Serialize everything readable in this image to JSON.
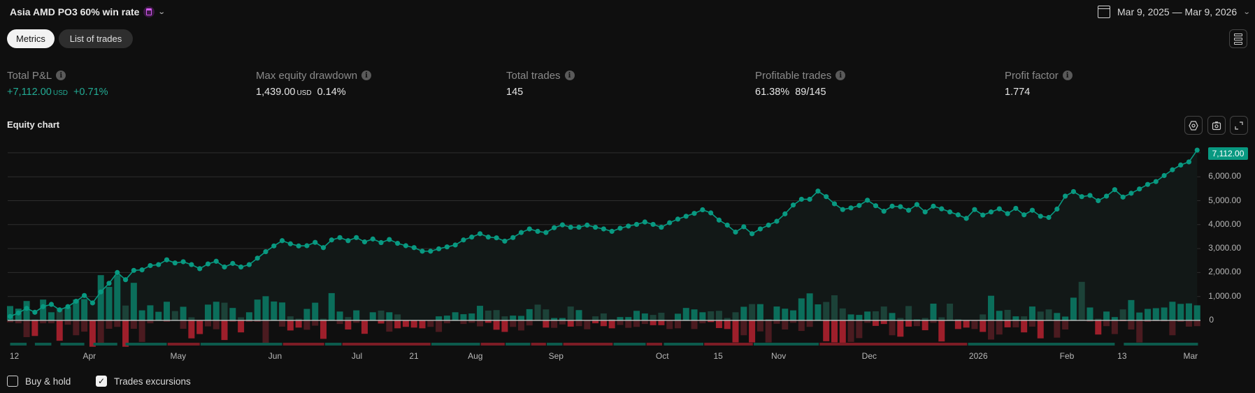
{
  "header": {
    "strategy_title": "Asia AMD PO3 60% win rate",
    "title_icon": "calendar-icon",
    "date_range": "Mar 9, 2025 — Mar 9, 2026"
  },
  "tabs": [
    {
      "label": "Metrics",
      "active": true
    },
    {
      "label": "List of trades",
      "active": false
    }
  ],
  "metrics": [
    {
      "label": "Total P&L",
      "value": "+7,112.00",
      "unit": "USD",
      "extra": "+0.71%",
      "color": "#22ab94"
    },
    {
      "label": "Max equity drawdown",
      "value": "1,439.00",
      "unit": "USD",
      "extra": "0.14%"
    },
    {
      "label": "Total trades",
      "value": "145"
    },
    {
      "label": "Profitable trades",
      "value": "61.38%",
      "extra": "89/145"
    },
    {
      "label": "Profit factor",
      "value": "1.774"
    }
  ],
  "equity_chart": {
    "title": "Equity chart",
    "toolbar_icons": [
      "settings-icon",
      "camera-icon",
      "fullscreen-icon"
    ],
    "last_value_label": "7,112.00"
  },
  "chart_data": {
    "type": "line",
    "x_unit": "trade number",
    "ylim": [
      -1000,
      7300
    ],
    "grid": true,
    "y_ticks": [
      {
        "value": 0,
        "label": "0"
      },
      {
        "value": 1000,
        "label": "1,000.00"
      },
      {
        "value": 2000,
        "label": "2,000.00"
      },
      {
        "value": 3000,
        "label": "3,000.00"
      },
      {
        "value": 4000,
        "label": "4,000.00"
      },
      {
        "value": 5000,
        "label": "5,000.00"
      },
      {
        "value": 6000,
        "label": "6,000.00"
      },
      {
        "value": 7000,
        "label": ""
      }
    ],
    "x_ticks": [
      {
        "trade": 0.2,
        "label": "12"
      },
      {
        "trade": 9.5,
        "label": "Apr"
      },
      {
        "trade": 20.1,
        "label": "May"
      },
      {
        "trade": 32,
        "label": "Jun"
      },
      {
        "trade": 42.1,
        "label": "Jul"
      },
      {
        "trade": 49.1,
        "label": "21"
      },
      {
        "trade": 56.2,
        "label": "Aug"
      },
      {
        "trade": 66,
        "label": "Sep"
      },
      {
        "trade": 79,
        "label": "Oct"
      },
      {
        "trade": 86,
        "label": "15"
      },
      {
        "trade": 93,
        "label": "Nov"
      },
      {
        "trade": 104,
        "label": "Dec"
      },
      {
        "trade": 117,
        "label": "2026"
      },
      {
        "trade": 128,
        "label": "Feb"
      },
      {
        "trade": 135,
        "label": "13"
      },
      {
        "trade": 143,
        "label": "Mar"
      }
    ],
    "colors": {
      "equity": "#089981",
      "runup": "#0b6e5b",
      "runup_faint": "#1c4238",
      "drawdown": "#9e1f2b",
      "drawdown_faint": "#4b1b20",
      "band_profit": "#0c5a4c",
      "band_loss": "#7c1c25"
    },
    "equity": [
      165,
      310,
      505,
      340,
      575,
      670,
      440,
      575,
      800,
      1040,
      730,
      1190,
      1550,
      2000,
      1700,
      2090,
      2110,
      2290,
      2330,
      2530,
      2400,
      2450,
      2330,
      2160,
      2360,
      2470,
      2230,
      2380,
      2230,
      2330,
      2600,
      2870,
      3110,
      3330,
      3200,
      3110,
      3120,
      3260,
      3040,
      3360,
      3460,
      3330,
      3460,
      3280,
      3400,
      3250,
      3380,
      3220,
      3120,
      3040,
      2890,
      2890,
      2990,
      3070,
      3150,
      3360,
      3480,
      3620,
      3480,
      3450,
      3310,
      3460,
      3670,
      3820,
      3720,
      3670,
      3870,
      3990,
      3890,
      3890,
      3980,
      3890,
      3820,
      3720,
      3850,
      3940,
      4010,
      4110,
      4010,
      3890,
      4080,
      4230,
      4350,
      4470,
      4620,
      4490,
      4190,
      3980,
      3690,
      3910,
      3620,
      3820,
      3980,
      4140,
      4450,
      4820,
      5060,
      5060,
      5400,
      5170,
      4870,
      4630,
      4700,
      4800,
      5020,
      4790,
      4560,
      4770,
      4750,
      4600,
      4840,
      4530,
      4770,
      4660,
      4530,
      4410,
      4260,
      4630,
      4400,
      4530,
      4660,
      4460,
      4680,
      4410,
      4600,
      4350,
      4300,
      4650,
      5190,
      5380,
      5170,
      5220,
      5000,
      5190,
      5460,
      5150,
      5310,
      5490,
      5680,
      5800,
      6050,
      6290,
      6490,
      6620,
      7112
    ],
    "runup": [
      600,
      490,
      810,
      40,
      870,
      340,
      500,
      550,
      870,
      890,
      0,
      1890,
      1400,
      1890,
      620,
      1570,
      420,
      630,
      360,
      780,
      390,
      570,
      130,
      0,
      660,
      780,
      740,
      520,
      130,
      340,
      870,
      1010,
      790,
      750,
      170,
      70,
      480,
      740,
      70,
      1140,
      370,
      140,
      420,
      0,
      340,
      410,
      340,
      250,
      0,
      0,
      0,
      0,
      170,
      200,
      340,
      260,
      290,
      610,
      410,
      430,
      170,
      200,
      190,
      470,
      660,
      460,
      100,
      100,
      580,
      430,
      0,
      170,
      290,
      50,
      140,
      140,
      400,
      290,
      230,
      320,
      0,
      280,
      520,
      460,
      340,
      380,
      400,
      100,
      340,
      570,
      680,
      680,
      40,
      580,
      490,
      420,
      920,
      1130,
      670,
      770,
      1050,
      500,
      250,
      230,
      370,
      380,
      580,
      310,
      100,
      600,
      40,
      100,
      700,
      130,
      700,
      50,
      0,
      0,
      250,
      1030,
      400,
      440,
      170,
      170,
      580,
      370,
      460,
      310,
      160,
      950,
      1610,
      540,
      70,
      370,
      140,
      460,
      850,
      330,
      480,
      510,
      540,
      780,
      690,
      710,
      630,
      1000,
      1660
    ],
    "drawdown": [
      80,
      120,
      700,
      650,
      120,
      120,
      850,
      180,
      620,
      470,
      1100,
      950,
      350,
      270,
      1100,
      350,
      900,
      120,
      0,
      60,
      0,
      350,
      750,
      570,
      250,
      370,
      820,
      60,
      500,
      60,
      60,
      950,
      0,
      260,
      420,
      300,
      390,
      220,
      770,
      0,
      150,
      380,
      100,
      560,
      0,
      130,
      470,
      330,
      270,
      300,
      330,
      270,
      480,
      120,
      0,
      150,
      100,
      250,
      100,
      390,
      480,
      270,
      420,
      210,
      0,
      300,
      310,
      170,
      260,
      240,
      370,
      120,
      240,
      330,
      190,
      310,
      270,
      150,
      200,
      200,
      360,
      330,
      0,
      360,
      120,
      70,
      320,
      360,
      920,
      620,
      920,
      460,
      920,
      140,
      380,
      100,
      440,
      270,
      0,
      870,
      920,
      930,
      900,
      740,
      100,
      230,
      150,
      620,
      680,
      260,
      240,
      410,
      100,
      880,
      0,
      360,
      300,
      360,
      480,
      800,
      590,
      290,
      290,
      500,
      260,
      750,
      0,
      720,
      380,
      0,
      0,
      50,
      590,
      240,
      570,
      30,
      380,
      920,
      60,
      30,
      40,
      620,
      60,
      260,
      240,
      450,
      600
    ],
    "period_bands": [
      {
        "from": 0,
        "to": 2,
        "result": "profit"
      },
      {
        "from": 3,
        "to": 5,
        "result": "profit"
      },
      {
        "from": 6.1,
        "to": 9,
        "result": "profit"
      },
      {
        "from": 10.1,
        "to": 13,
        "result": "profit"
      },
      {
        "from": 14,
        "to": 19,
        "result": "profit"
      },
      {
        "from": 19.1,
        "to": 23,
        "result": "loss"
      },
      {
        "from": 23.1,
        "to": 33,
        "result": "profit"
      },
      {
        "from": 33.1,
        "to": 38.1,
        "result": "loss"
      },
      {
        "from": 38.2,
        "to": 40.2,
        "result": "profit"
      },
      {
        "from": 40.3,
        "to": 51,
        "result": "loss"
      },
      {
        "from": 51.1,
        "to": 57,
        "result": "profit"
      },
      {
        "from": 57.1,
        "to": 60,
        "result": "loss"
      },
      {
        "from": 60.1,
        "to": 63.1,
        "result": "profit"
      },
      {
        "from": 63.2,
        "to": 65,
        "result": "loss"
      },
      {
        "from": 65.1,
        "to": 67,
        "result": "profit"
      },
      {
        "from": 67.1,
        "to": 73.1,
        "result": "loss"
      },
      {
        "from": 73.2,
        "to": 77.1,
        "result": "profit"
      },
      {
        "from": 77.2,
        "to": 79.1,
        "result": "loss"
      },
      {
        "from": 79.3,
        "to": 84.1,
        "result": "profit"
      },
      {
        "from": 84.2,
        "to": 90.1,
        "result": "loss"
      },
      {
        "from": 90.2,
        "to": 98.1,
        "result": "profit"
      },
      {
        "from": 98.2,
        "to": 116.1,
        "result": "loss"
      },
      {
        "from": 116.2,
        "to": 134,
        "result": "profit"
      },
      {
        "from": 135.1,
        "to": 144.1,
        "result": "profit"
      }
    ]
  },
  "footer": {
    "options": [
      {
        "label": "Buy & hold",
        "checked": false
      },
      {
        "label": "Trades excursions",
        "checked": true
      }
    ]
  }
}
